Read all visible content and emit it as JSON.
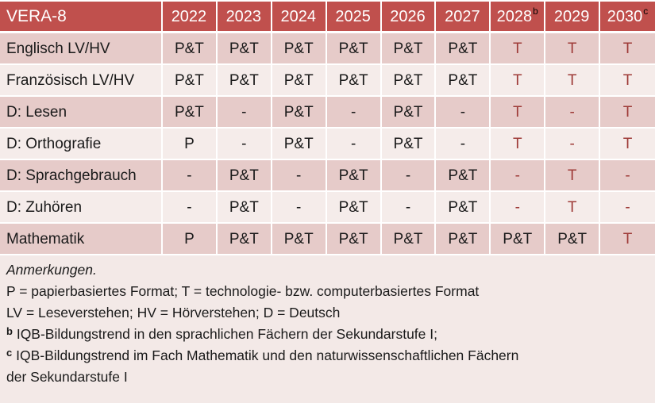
{
  "colors": {
    "header_bg": "#C0504D",
    "band_dark": "#E6CBC9",
    "band_light": "#F5ECEA",
    "notes_bg": "#F3E9E7",
    "accent_text": "#9E3B38"
  },
  "table": {
    "corner_label": "VERA-8",
    "columns": [
      {
        "year": "2022",
        "sup": ""
      },
      {
        "year": "2023",
        "sup": ""
      },
      {
        "year": "2024",
        "sup": ""
      },
      {
        "year": "2025",
        "sup": ""
      },
      {
        "year": "2026",
        "sup": ""
      },
      {
        "year": "2027",
        "sup": ""
      },
      {
        "year": "2028",
        "sup": "b"
      },
      {
        "year": "2029",
        "sup": ""
      },
      {
        "year": "2030",
        "sup": "c"
      }
    ],
    "rows": [
      {
        "label": "Englisch LV/HV",
        "values": [
          "P&T",
          "P&T",
          "P&T",
          "P&T",
          "P&T",
          "P&T",
          "T",
          "T",
          "T"
        ]
      },
      {
        "label": "Französisch LV/HV",
        "values": [
          "P&T",
          "P&T",
          "P&T",
          "P&T",
          "P&T",
          "P&T",
          "T",
          "T",
          "T"
        ]
      },
      {
        "label": "D: Lesen",
        "values": [
          "P&T",
          "-",
          "P&T",
          "-",
          "P&T",
          "-",
          "T",
          "-",
          "T"
        ]
      },
      {
        "label": "D: Orthografie",
        "values": [
          "P",
          "-",
          "P&T",
          "-",
          "P&T",
          "-",
          "T",
          "-",
          "T"
        ]
      },
      {
        "label": "D: Sprachgebrauch",
        "values": [
          "-",
          "P&T",
          "-",
          "P&T",
          "-",
          "P&T",
          "-",
          "T",
          "-"
        ]
      },
      {
        "label": "D: Zuhören",
        "values": [
          "-",
          "P&T",
          "-",
          "P&T",
          "-",
          "P&T",
          "-",
          "T",
          "-"
        ]
      },
      {
        "label": "Mathematik",
        "values": [
          "P",
          "P&T",
          "P&T",
          "P&T",
          "P&T",
          "P&T",
          "P&T",
          "P&T",
          "T"
        ]
      }
    ]
  },
  "notes": {
    "heading": "Anmerkungen.",
    "line_formats": "P = papierbasiertes Format; T = technologie- bzw. computerbasiertes Format",
    "line_abbrev": "LV = Leseverstehen; HV = Hörverstehen; D = Deutsch",
    "fn_b_marker": "b",
    "fn_b_text": "IQB-Bildungstrend in den sprachlichen Fächern der Sekundarstufe I;",
    "fn_c_marker": "c",
    "fn_c_text": "IQB-Bildungstrend im Fach Mathematik und den naturwissenschaftlichen Fächern der Sekundarstufe I"
  }
}
